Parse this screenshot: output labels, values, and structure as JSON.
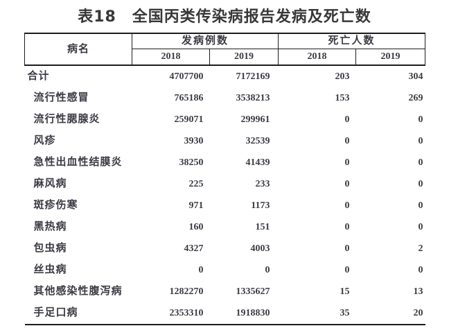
{
  "title": "表18　全国丙类传染病报告发病及死亡数",
  "table": {
    "col_disease": "病名",
    "group_cases": "发病例数",
    "group_deaths": "死亡人数",
    "years": [
      "2018",
      "2019"
    ],
    "rows": [
      {
        "name": "合计",
        "total": true,
        "cases_2018": "4707700",
        "cases_2019": "7172169",
        "deaths_2018": "203",
        "deaths_2019": "304"
      },
      {
        "name": "流行性感冒",
        "total": false,
        "cases_2018": "765186",
        "cases_2019": "3538213",
        "deaths_2018": "153",
        "deaths_2019": "269"
      },
      {
        "name": "流行性腮腺炎",
        "total": false,
        "cases_2018": "259071",
        "cases_2019": "299961",
        "deaths_2018": "0",
        "deaths_2019": "0"
      },
      {
        "name": "风疹",
        "total": false,
        "cases_2018": "3930",
        "cases_2019": "32539",
        "deaths_2018": "0",
        "deaths_2019": "0"
      },
      {
        "name": "急性出血性结膜炎",
        "total": false,
        "cases_2018": "38250",
        "cases_2019": "41439",
        "deaths_2018": "0",
        "deaths_2019": "0"
      },
      {
        "name": "麻风病",
        "total": false,
        "cases_2018": "225",
        "cases_2019": "233",
        "deaths_2018": "0",
        "deaths_2019": "0"
      },
      {
        "name": "斑疹伤寒",
        "total": false,
        "cases_2018": "971",
        "cases_2019": "1173",
        "deaths_2018": "0",
        "deaths_2019": "0"
      },
      {
        "name": "黑热病",
        "total": false,
        "cases_2018": "160",
        "cases_2019": "151",
        "deaths_2018": "0",
        "deaths_2019": "0"
      },
      {
        "name": "包虫病",
        "total": false,
        "cases_2018": "4327",
        "cases_2019": "4003",
        "deaths_2018": "0",
        "deaths_2019": "2"
      },
      {
        "name": "丝虫病",
        "total": false,
        "cases_2018": "0",
        "cases_2019": "0",
        "deaths_2018": "0",
        "deaths_2019": "0"
      },
      {
        "name": "其他感染性腹泻病",
        "total": false,
        "cases_2018": "1282270",
        "cases_2019": "1335627",
        "deaths_2018": "15",
        "deaths_2019": "13"
      },
      {
        "name": "手足口病",
        "total": false,
        "cases_2018": "2353310",
        "cases_2019": "1918830",
        "deaths_2018": "35",
        "deaths_2019": "20"
      }
    ]
  },
  "colors": {
    "text": "#3b3b44",
    "title_text": "#383838",
    "border": "#1c1c1c",
    "background": "#ffffff"
  }
}
